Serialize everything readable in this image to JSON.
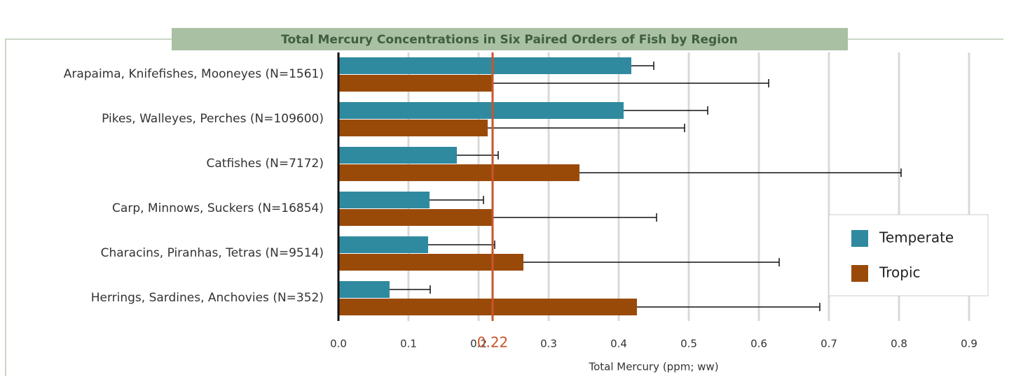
{
  "chart_data": {
    "type": "bar",
    "orientation": "horizontal",
    "title": "Total Mercury Concentrations in Six Paired Orders of Fish by Region",
    "xlabel": "Total Mercury (ppm; ww)",
    "categories": [
      "Arapaima, Knifefishes, Mooneyes (N=1561)",
      "Pikes, Walleyes, Perches (N=109600)",
      "Catfishes (N=7172)",
      "Carp, Minnows, Suckers (N=16854)",
      "Characins, Piranhas, Tetras (N=9514)",
      "Herrings, Sardines, Anchovies (N=352)"
    ],
    "series": [
      {
        "name": "Temperate",
        "color": "#2f8a9f",
        "values": [
          0.418,
          0.407,
          0.169,
          0.13,
          0.128,
          0.073
        ],
        "errors": [
          0.032,
          0.12,
          0.059,
          0.077,
          0.095,
          0.058
        ]
      },
      {
        "name": "Tropic",
        "color": "#9a4a08",
        "values": [
          0.22,
          0.213,
          0.344,
          0.219,
          0.264,
          0.426
        ],
        "errors": [
          0.394,
          0.281,
          0.459,
          0.235,
          0.365,
          0.261
        ]
      }
    ],
    "xlim": [
      0,
      0.9
    ],
    "xticks": [
      {
        "value": 0,
        "label": "0.0"
      },
      0.1,
      0.2,
      0.3,
      0.4,
      0.5,
      0.6,
      0.7,
      0.8,
      0.9
    ],
    "reference_line": {
      "value": 0.22,
      "label": "0.22",
      "color": "#c9552b"
    },
    "grid": true,
    "legend": "right"
  }
}
